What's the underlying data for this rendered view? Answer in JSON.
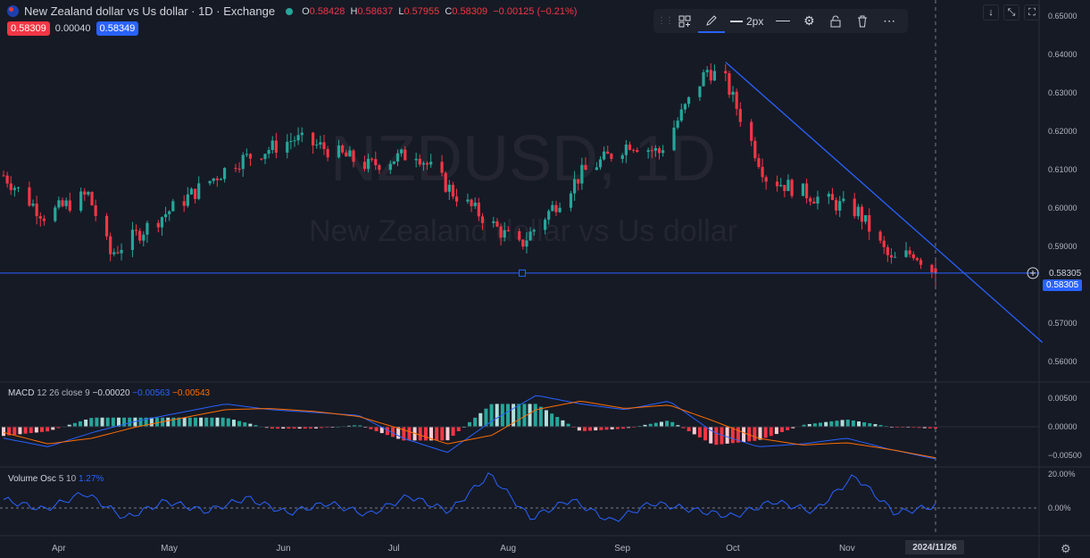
{
  "header": {
    "title": "New Zealand dollar vs Us dollar · 1D · Exchange",
    "open_label": "O",
    "open": "0.58428",
    "high_label": "H",
    "high": "0.58637",
    "low_label": "L",
    "low": "0.57955",
    "close_label": "C",
    "close": "0.58309",
    "change": "−0.00125 (−0.21%)",
    "sell_price": "0.58309",
    "spread": "0.00040",
    "buy_price": "0.58349"
  },
  "watermark": {
    "symbol": "NZDUSD, 1D",
    "name": "New Zealand dollar vs Us dollar"
  },
  "toolbar": {
    "line_width_label": "2px"
  },
  "price_axis": {
    "ticks": [
      "0.65000",
      "0.64000",
      "0.63000",
      "0.62000",
      "0.61000",
      "0.60000",
      "0.59000",
      "0.58000",
      "0.57000",
      "0.56000"
    ],
    "crosshair_label": "0.58305",
    "last_price_label": "0.58305"
  },
  "macd": {
    "label": "MACD",
    "params": "12 26 close 9",
    "hist_value": "−0.00020",
    "macd_value": "−0.00563",
    "signal_value": "−0.00543",
    "ticks": [
      "0.00500",
      "0.00000",
      "−0.00500"
    ]
  },
  "volume_osc": {
    "label": "Volume Osc",
    "params": "5 10",
    "value": "1.27%",
    "ticks": [
      "20.00%",
      "0.00%"
    ]
  },
  "time_axis": {
    "labels": [
      "Apr",
      "May",
      "Jun",
      "Jul",
      "Aug",
      "Sep",
      "Oct",
      "Nov"
    ],
    "crosshair_date": "2024/11/26"
  },
  "colors": {
    "up": "#26a69a",
    "down": "#f23645",
    "background": "#161a25",
    "macd_line": "#2962ff",
    "signal_line": "#ff6d00",
    "trendline": "#2962ff"
  },
  "chart_data": [
    {
      "type": "candlestick",
      "title": "New Zealand dollar vs Us dollar · 1D · Exchange",
      "date_range": [
        "2024-03-18",
        "2024-11-26"
      ],
      "anchors": [
        {
          "date": "2024-03-18",
          "close": 0.6085
        },
        {
          "date": "2024-03-29",
          "close": 0.598
        },
        {
          "date": "2024-04-10",
          "close": 0.6035
        },
        {
          "date": "2024-04-16",
          "close": 0.588
        },
        {
          "date": "2024-05-03",
          "close": 0.6
        },
        {
          "date": "2024-05-20",
          "close": 0.612
        },
        {
          "date": "2024-06-05",
          "close": 0.618
        },
        {
          "date": "2024-06-12",
          "close": 0.616
        },
        {
          "date": "2024-06-25",
          "close": 0.611
        },
        {
          "date": "2024-07-08",
          "close": 0.6145
        },
        {
          "date": "2024-07-18",
          "close": 0.604
        },
        {
          "date": "2024-08-05",
          "close": 0.59
        },
        {
          "date": "2024-08-22",
          "close": 0.609
        },
        {
          "date": "2024-09-04",
          "close": 0.617
        },
        {
          "date": "2024-09-12",
          "close": 0.6145
        },
        {
          "date": "2024-09-25",
          "close": 0.636
        },
        {
          "date": "2024-09-30",
          "close": 0.633
        },
        {
          "date": "2024-10-11",
          "close": 0.608
        },
        {
          "date": "2024-10-24",
          "close": 0.603
        },
        {
          "date": "2024-11-05",
          "close": 0.599
        },
        {
          "date": "2024-11-14",
          "close": 0.586
        },
        {
          "date": "2024-11-20",
          "close": 0.5885
        },
        {
          "date": "2024-11-26",
          "open": 0.58428,
          "high": 0.58637,
          "low": 0.57955,
          "close": 0.58309
        }
      ],
      "ylim": [
        0.5515,
        0.6535
      ],
      "horizontal_line": 0.58305,
      "trendline": [
        {
          "date": "2024-09-30",
          "price": 0.638
        },
        {
          "date": "2024-12-25",
          "price": 0.565
        }
      ]
    },
    {
      "type": "line",
      "title": "MACD 12 26 close 9",
      "series": [
        {
          "name": "MACD",
          "values": [
            -0.002,
            -0.0035,
            -0.001,
            0.001,
            0.0025,
            0.004,
            0.003,
            0.0025,
            0.002,
            -0.002,
            -0.0045,
            0.001,
            0.0055,
            0.004,
            0.003,
            0.0045,
            -0.001,
            -0.0035,
            -0.003,
            -0.002,
            -0.004,
            -0.00563
          ]
        },
        {
          "name": "Signal",
          "values": [
            -0.001,
            -0.003,
            -0.002,
            0.0,
            0.0015,
            0.003,
            0.0032,
            0.0027,
            0.0018,
            -0.0005,
            -0.003,
            -0.0015,
            0.003,
            0.0045,
            0.0032,
            0.0038,
            0.001,
            -0.002,
            -0.0032,
            -0.0028,
            -0.004,
            -0.00543
          ]
        }
      ],
      "latest": {
        "histogram": -0.0002,
        "macd": -0.00563,
        "signal": -0.00543
      },
      "ylim": [
        -0.0065,
        0.0058
      ]
    },
    {
      "type": "line",
      "title": "Volume Osc 5 10",
      "series": [
        {
          "name": "Volume Osc",
          "values": [
            5,
            -1,
            9,
            -6,
            4,
            -2,
            6,
            -3,
            3,
            -4,
            7,
            -2,
            20,
            -6,
            5,
            -8,
            3,
            -1,
            -5,
            4,
            -2,
            19,
            -3,
            1.27
          ]
        }
      ],
      "unit": "%",
      "ylim": [
        -12,
        25
      ]
    }
  ]
}
